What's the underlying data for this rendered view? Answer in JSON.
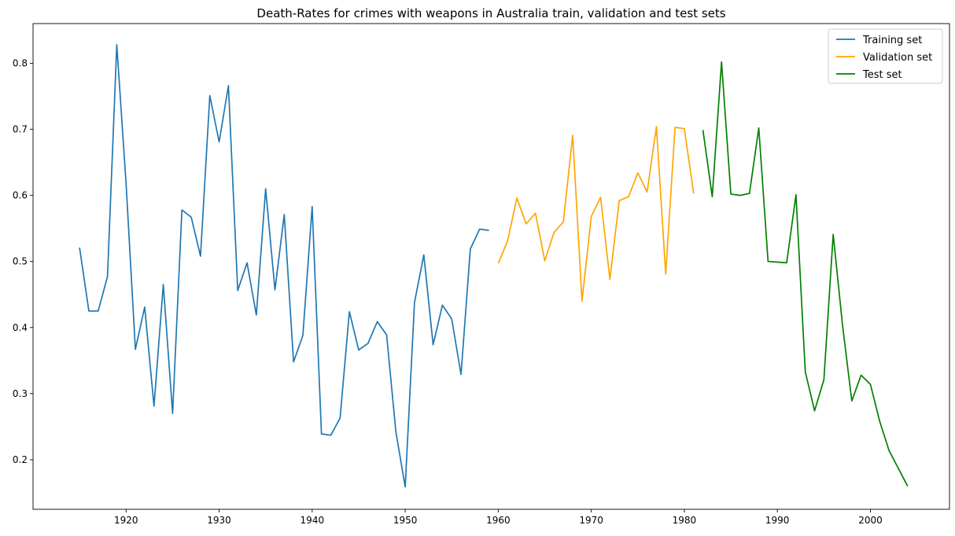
{
  "chart_data": {
    "type": "line",
    "title": "Death-Rates for crimes with weapons in Australia train, validation and test sets",
    "xlabel": "",
    "ylabel": "",
    "xlim": [
      1910,
      2008.5
    ],
    "ylim": [
      0.125,
      0.86
    ],
    "xticks": [
      1920,
      1930,
      1940,
      1950,
      1960,
      1970,
      1980,
      1990,
      2000
    ],
    "yticks": [
      0.2,
      0.3,
      0.4,
      0.5,
      0.6,
      0.7,
      0.8
    ],
    "grid": false,
    "legend_position": "top-right",
    "series": [
      {
        "name": "Training set",
        "color": "#1f77b4",
        "x": [
          1915,
          1916,
          1917,
          1918,
          1919,
          1920,
          1921,
          1922,
          1923,
          1924,
          1925,
          1926,
          1927,
          1928,
          1929,
          1930,
          1931,
          1932,
          1933,
          1934,
          1935,
          1936,
          1937,
          1938,
          1939,
          1940,
          1941,
          1942,
          1943,
          1944,
          1945,
          1946,
          1947,
          1948,
          1949,
          1950,
          1951,
          1952,
          1953,
          1954,
          1955,
          1956,
          1957,
          1958,
          1959
        ],
        "y": [
          0.521,
          0.425,
          0.425,
          0.477,
          0.828,
          0.618,
          0.367,
          0.431,
          0.281,
          0.465,
          0.27,
          0.578,
          0.567,
          0.508,
          0.751,
          0.681,
          0.766,
          0.456,
          0.498,
          0.419,
          0.61,
          0.457,
          0.571,
          0.348,
          0.388,
          0.583,
          0.239,
          0.237,
          0.263,
          0.424,
          0.366,
          0.376,
          0.409,
          0.389,
          0.242,
          0.159,
          0.438,
          0.51,
          0.374,
          0.434,
          0.413,
          0.329,
          0.519,
          0.549,
          0.547
        ]
      },
      {
        "name": "Validation set",
        "color": "#ffa500",
        "x": [
          1960,
          1961,
          1962,
          1963,
          1964,
          1965,
          1966,
          1967,
          1968,
          1969,
          1970,
          1971,
          1972,
          1973,
          1974,
          1975,
          1976,
          1977,
          1978,
          1979,
          1980,
          1981
        ],
        "y": [
          0.497,
          0.531,
          0.596,
          0.557,
          0.573,
          0.501,
          0.544,
          0.56,
          0.691,
          0.44,
          0.568,
          0.597,
          0.473,
          0.592,
          0.598,
          0.634,
          0.605,
          0.704,
          0.481,
          0.703,
          0.701,
          0.603
        ]
      },
      {
        "name": "Test set",
        "color": "#008000",
        "x": [
          1982,
          1983,
          1984,
          1985,
          1986,
          1987,
          1988,
          1989,
          1990,
          1991,
          1992,
          1993,
          1994,
          1995,
          1996,
          1997,
          1998,
          1999,
          2000,
          2001,
          2002,
          2003,
          2004
        ],
        "y": [
          0.699,
          0.598,
          0.802,
          0.602,
          0.6,
          0.603,
          0.702,
          0.5,
          0.499,
          0.498,
          0.601,
          0.333,
          0.274,
          0.321,
          0.541,
          0.404,
          0.289,
          0.328,
          0.314,
          0.258,
          0.214,
          0.187,
          0.16
        ]
      }
    ]
  }
}
